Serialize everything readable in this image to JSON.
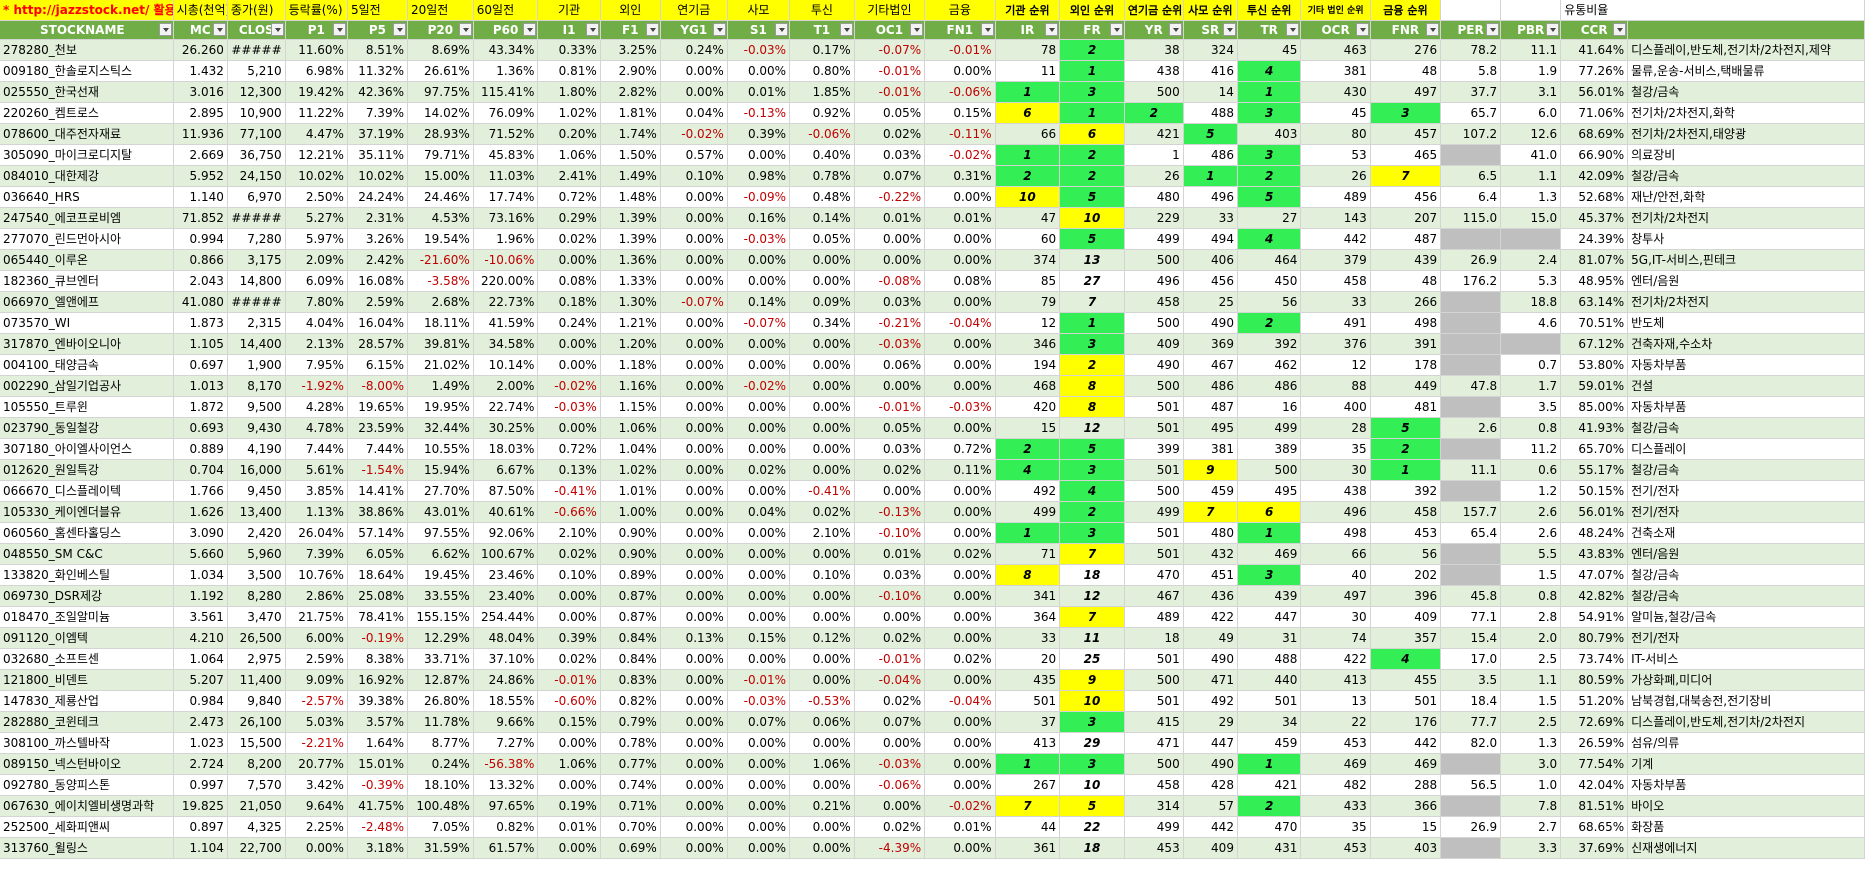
{
  "top": {
    "link": "* http://jazzstock.net/ 활용",
    "cells": [
      "시총(천억)",
      "종가(원)",
      "등락률(%)",
      "5일전",
      "20일전",
      "60일전",
      "기관",
      "외인",
      "연기금",
      "사모",
      "투신",
      "기타법인",
      "금융",
      "기관 순위",
      "외인 순위",
      "연기금 순위",
      "사모 순위",
      "투신 순위",
      "기타 법인 순위",
      "금융 순위",
      "",
      "",
      "유통비율"
    ]
  },
  "headers": [
    "STOCKNAME",
    "MC",
    "CLOS",
    "P1",
    "P5",
    "P20",
    "P60",
    "I1",
    "F1",
    "YG1",
    "S1",
    "T1",
    "OC1",
    "FN1",
    "IR",
    "FR",
    "YR",
    "SR",
    "TR",
    "OCR",
    "FNR",
    "PER",
    "PBR",
    "CCR",
    ""
  ],
  "rows": [
    [
      "278280_천보",
      "26.260",
      "#####",
      "11.60%",
      "8.51%",
      "8.69%",
      "43.34%",
      "0.33%",
      "3.25%",
      "0.24%",
      "-0.03%",
      "0.17%",
      "-0.07%",
      "-0.01%",
      "78",
      "2",
      "38",
      "324",
      "45",
      "463",
      "276",
      "78.2",
      "11.1",
      "41.64%",
      "디스플레이,반도체,전기차/2차전지,제약"
    ],
    [
      "009180_한솔로지스틱스",
      "1.432",
      "5,210",
      "6.98%",
      "11.32%",
      "26.61%",
      "1.36%",
      "0.81%",
      "2.90%",
      "0.00%",
      "0.00%",
      "0.80%",
      "-0.01%",
      "0.00%",
      "11",
      "1",
      "438",
      "416",
      "4",
      "381",
      "48",
      "5.8",
      "1.9",
      "77.26%",
      "물류,운송-서비스,택배물류"
    ],
    [
      "025550_한국선재",
      "3.016",
      "12,300",
      "19.42%",
      "42.36%",
      "97.75%",
      "115.41%",
      "1.80%",
      "2.82%",
      "0.00%",
      "0.01%",
      "1.85%",
      "-0.01%",
      "-0.06%",
      "1",
      "3",
      "500",
      "14",
      "1",
      "430",
      "497",
      "37.7",
      "3.1",
      "56.01%",
      "철강/금속"
    ],
    [
      "220260_켐트로스",
      "2.895",
      "10,900",
      "11.22%",
      "7.39%",
      "14.02%",
      "76.09%",
      "1.02%",
      "1.81%",
      "0.04%",
      "-0.13%",
      "0.92%",
      "0.05%",
      "0.15%",
      "6",
      "1",
      "2",
      "488",
      "3",
      "45",
      "3",
      "65.7",
      "6.0",
      "71.06%",
      "전기차/2차전지,화학"
    ],
    [
      "078600_대주전자재료",
      "11.936",
      "77,100",
      "4.47%",
      "37.19%",
      "28.93%",
      "71.52%",
      "0.20%",
      "1.74%",
      "-0.02%",
      "0.39%",
      "-0.06%",
      "0.02%",
      "-0.11%",
      "66",
      "6",
      "421",
      "5",
      "403",
      "80",
      "457",
      "107.2",
      "12.6",
      "68.69%",
      "전기차/2차전지,태양광"
    ],
    [
      "305090_마이크로디지탈",
      "2.669",
      "36,750",
      "12.21%",
      "35.11%",
      "79.71%",
      "45.83%",
      "1.06%",
      "1.50%",
      "0.57%",
      "0.00%",
      "0.40%",
      "0.03%",
      "-0.02%",
      "1",
      "2",
      "1",
      "486",
      "3",
      "53",
      "465",
      "",
      "41.0",
      "66.90%",
      "의료장비"
    ],
    [
      "084010_대한제강",
      "5.952",
      "24,150",
      "10.02%",
      "10.02%",
      "15.00%",
      "11.03%",
      "2.41%",
      "1.49%",
      "0.10%",
      "0.98%",
      "0.78%",
      "0.07%",
      "0.31%",
      "2",
      "2",
      "26",
      "1",
      "2",
      "26",
      "7",
      "6.5",
      "1.1",
      "42.09%",
      "철강/금속"
    ],
    [
      "036640_HRS",
      "1.140",
      "6,970",
      "2.50%",
      "24.24%",
      "24.46%",
      "17.74%",
      "0.72%",
      "1.48%",
      "0.00%",
      "-0.09%",
      "0.48%",
      "-0.22%",
      "0.00%",
      "10",
      "5",
      "480",
      "496",
      "5",
      "489",
      "456",
      "6.4",
      "1.3",
      "52.68%",
      "재난/안전,화학"
    ],
    [
      "247540_에코프로비엠",
      "71.852",
      "#####",
      "5.27%",
      "2.31%",
      "4.53%",
      "73.16%",
      "0.29%",
      "1.39%",
      "0.00%",
      "0.16%",
      "0.14%",
      "0.01%",
      "0.01%",
      "47",
      "10",
      "229",
      "33",
      "27",
      "143",
      "207",
      "115.0",
      "15.0",
      "45.37%",
      "전기차/2차전지"
    ],
    [
      "277070_린드먼아시아",
      "0.994",
      "7,280",
      "5.97%",
      "3.26%",
      "19.54%",
      "1.96%",
      "0.02%",
      "1.39%",
      "0.00%",
      "-0.03%",
      "0.05%",
      "0.00%",
      "0.00%",
      "60",
      "5",
      "499",
      "494",
      "4",
      "442",
      "487",
      "",
      "",
      "24.39%",
      "창투사"
    ],
    [
      "065440_이루온",
      "0.866",
      "3,175",
      "2.09%",
      "2.42%",
      "-21.60%",
      "-10.06%",
      "0.00%",
      "1.36%",
      "0.00%",
      "0.00%",
      "0.00%",
      "0.00%",
      "0.00%",
      "374",
      "13",
      "500",
      "406",
      "464",
      "379",
      "439",
      "26.9",
      "2.4",
      "81.07%",
      "5G,IT-서비스,핀테크"
    ],
    [
      "182360_큐브엔터",
      "2.043",
      "14,800",
      "6.09%",
      "16.08%",
      "-3.58%",
      "220.00%",
      "0.08%",
      "1.33%",
      "0.00%",
      "0.00%",
      "0.00%",
      "-0.08%",
      "0.08%",
      "85",
      "27",
      "496",
      "456",
      "450",
      "458",
      "48",
      "176.2",
      "5.3",
      "48.95%",
      "엔터/음원"
    ],
    [
      "066970_엘앤에프",
      "41.080",
      "#####",
      "7.80%",
      "2.59%",
      "2.68%",
      "22.73%",
      "0.18%",
      "1.30%",
      "-0.07%",
      "0.14%",
      "0.09%",
      "0.03%",
      "0.00%",
      "79",
      "7",
      "458",
      "25",
      "56",
      "33",
      "266",
      "",
      "18.8",
      "63.14%",
      "전기차/2차전지"
    ],
    [
      "073570_WI",
      "1.873",
      "2,315",
      "4.04%",
      "16.04%",
      "18.11%",
      "41.59%",
      "0.24%",
      "1.21%",
      "0.00%",
      "-0.07%",
      "0.34%",
      "-0.21%",
      "-0.04%",
      "12",
      "1",
      "500",
      "490",
      "2",
      "491",
      "498",
      "",
      "4.6",
      "70.51%",
      "반도체"
    ],
    [
      "317870_엔바이오니아",
      "1.105",
      "14,400",
      "2.13%",
      "28.57%",
      "39.81%",
      "34.58%",
      "0.00%",
      "1.20%",
      "0.00%",
      "0.00%",
      "0.00%",
      "-0.03%",
      "0.00%",
      "346",
      "3",
      "409",
      "369",
      "392",
      "376",
      "391",
      "",
      "",
      "67.12%",
      "건축자재,수소차"
    ],
    [
      "004100_태양금속",
      "0.697",
      "1,900",
      "7.95%",
      "6.15%",
      "21.02%",
      "10.14%",
      "0.00%",
      "1.18%",
      "0.00%",
      "0.00%",
      "0.00%",
      "0.06%",
      "0.00%",
      "194",
      "2",
      "490",
      "467",
      "462",
      "12",
      "178",
      "",
      "0.7",
      "53.80%",
      "자동차부품"
    ],
    [
      "002290_삼일기업공사",
      "1.013",
      "8,170",
      "-1.92%",
      "-8.00%",
      "1.49%",
      "2.00%",
      "-0.02%",
      "1.16%",
      "0.00%",
      "-0.02%",
      "0.00%",
      "0.00%",
      "0.00%",
      "468",
      "8",
      "500",
      "486",
      "486",
      "88",
      "449",
      "47.8",
      "1.7",
      "59.01%",
      "건설"
    ],
    [
      "105550_트루윈",
      "1.872",
      "9,500",
      "4.28%",
      "19.65%",
      "19.95%",
      "22.74%",
      "-0.03%",
      "1.15%",
      "0.00%",
      "0.00%",
      "0.00%",
      "-0.01%",
      "-0.03%",
      "420",
      "8",
      "501",
      "487",
      "16",
      "400",
      "481",
      "",
      "3.5",
      "85.00%",
      "자동차부품"
    ],
    [
      "023790_동일철강",
      "0.693",
      "9,430",
      "4.78%",
      "23.59%",
      "32.44%",
      "30.25%",
      "0.00%",
      "1.06%",
      "0.00%",
      "0.00%",
      "0.00%",
      "0.05%",
      "0.00%",
      "15",
      "12",
      "501",
      "495",
      "499",
      "28",
      "5",
      "2.6",
      "0.8",
      "41.93%",
      "철강/금속"
    ],
    [
      "307180_아이엘사이언스",
      "0.889",
      "4,190",
      "7.44%",
      "7.44%",
      "10.55%",
      "18.03%",
      "0.72%",
      "1.04%",
      "0.00%",
      "0.00%",
      "0.00%",
      "0.03%",
      "0.72%",
      "2",
      "5",
      "399",
      "381",
      "389",
      "35",
      "2",
      "",
      "11.2",
      "65.70%",
      "디스플레이"
    ],
    [
      "012620_원일특강",
      "0.704",
      "16,000",
      "5.61%",
      "-1.54%",
      "15.94%",
      "6.67%",
      "0.13%",
      "1.02%",
      "0.00%",
      "0.02%",
      "0.00%",
      "0.02%",
      "0.11%",
      "4",
      "3",
      "501",
      "9",
      "500",
      "30",
      "1",
      "11.1",
      "0.6",
      "55.17%",
      "철강/금속"
    ],
    [
      "066670_디스플레이텍",
      "1.766",
      "9,450",
      "3.85%",
      "14.41%",
      "27.70%",
      "87.50%",
      "-0.41%",
      "1.01%",
      "0.00%",
      "0.00%",
      "-0.41%",
      "0.00%",
      "0.00%",
      "492",
      "4",
      "500",
      "459",
      "495",
      "438",
      "392",
      "",
      "1.2",
      "50.15%",
      "전기/전자"
    ],
    [
      "105330_케이엔더블유",
      "1.626",
      "13,400",
      "1.13%",
      "38.86%",
      "43.01%",
      "40.61%",
      "-0.66%",
      "1.00%",
      "0.00%",
      "0.04%",
      "0.02%",
      "-0.13%",
      "0.00%",
      "499",
      "2",
      "499",
      "7",
      "6",
      "496",
      "458",
      "157.7",
      "2.6",
      "56.01%",
      "전기/전자"
    ],
    [
      "060560_홈센타홀딩스",
      "3.090",
      "2,420",
      "26.04%",
      "57.14%",
      "97.55%",
      "92.06%",
      "2.10%",
      "0.90%",
      "0.00%",
      "0.00%",
      "2.10%",
      "-0.10%",
      "0.00%",
      "1",
      "3",
      "501",
      "480",
      "1",
      "498",
      "453",
      "65.4",
      "2.6",
      "48.24%",
      "건축소재"
    ],
    [
      "048550_SM C&C",
      "5.660",
      "5,960",
      "7.39%",
      "6.05%",
      "6.62%",
      "100.67%",
      "0.02%",
      "0.90%",
      "0.00%",
      "0.00%",
      "0.00%",
      "0.01%",
      "0.02%",
      "71",
      "7",
      "501",
      "432",
      "469",
      "66",
      "56",
      "",
      "5.5",
      "43.83%",
      "엔터/음원"
    ],
    [
      "133820_화인베스틸",
      "1.034",
      "3,500",
      "10.76%",
      "18.64%",
      "19.45%",
      "23.46%",
      "0.10%",
      "0.89%",
      "0.00%",
      "0.00%",
      "0.10%",
      "0.03%",
      "0.00%",
      "8",
      "18",
      "470",
      "451",
      "3",
      "40",
      "202",
      "",
      "1.5",
      "47.07%",
      "철강/금속"
    ],
    [
      "069730_DSR제강",
      "1.192",
      "8,280",
      "2.86%",
      "25.08%",
      "33.55%",
      "23.40%",
      "0.00%",
      "0.87%",
      "0.00%",
      "0.00%",
      "0.00%",
      "-0.10%",
      "0.00%",
      "341",
      "12",
      "467",
      "436",
      "439",
      "497",
      "396",
      "45.8",
      "0.8",
      "42.82%",
      "철강/금속"
    ],
    [
      "018470_조일알미늄",
      "3.561",
      "3,470",
      "21.75%",
      "78.41%",
      "155.15%",
      "254.44%",
      "0.00%",
      "0.87%",
      "0.00%",
      "0.00%",
      "0.00%",
      "0.00%",
      "0.00%",
      "364",
      "7",
      "489",
      "422",
      "447",
      "30",
      "409",
      "77.1",
      "2.8",
      "54.91%",
      "알미늄,철강/금속"
    ],
    [
      "091120_이엠텍",
      "4.210",
      "26,500",
      "6.00%",
      "-0.19%",
      "12.29%",
      "48.04%",
      "0.39%",
      "0.84%",
      "0.13%",
      "0.15%",
      "0.12%",
      "0.02%",
      "0.00%",
      "33",
      "11",
      "18",
      "49",
      "31",
      "74",
      "357",
      "15.4",
      "2.0",
      "80.79%",
      "전기/전자"
    ],
    [
      "032680_소프트센",
      "1.064",
      "2,975",
      "2.59%",
      "8.38%",
      "33.71%",
      "37.10%",
      "0.02%",
      "0.84%",
      "0.00%",
      "0.00%",
      "0.00%",
      "-0.01%",
      "0.02%",
      "20",
      "25",
      "501",
      "490",
      "488",
      "422",
      "4",
      "17.0",
      "2.5",
      "73.74%",
      "IT-서비스"
    ],
    [
      "121800_비덴트",
      "5.207",
      "11,400",
      "9.09%",
      "16.92%",
      "12.87%",
      "24.86%",
      "-0.01%",
      "0.83%",
      "0.00%",
      "-0.01%",
      "0.00%",
      "-0.04%",
      "0.00%",
      "435",
      "9",
      "500",
      "471",
      "440",
      "413",
      "455",
      "3.5",
      "1.1",
      "80.59%",
      "가상화폐,미디어"
    ],
    [
      "147830_제룡산업",
      "0.984",
      "9,840",
      "-2.57%",
      "39.38%",
      "26.80%",
      "18.55%",
      "-0.60%",
      "0.82%",
      "0.00%",
      "-0.03%",
      "-0.53%",
      "0.02%",
      "-0.04%",
      "501",
      "10",
      "501",
      "492",
      "501",
      "13",
      "501",
      "18.4",
      "1.5",
      "51.20%",
      "남북경협,대북송전,전기장비"
    ],
    [
      "282880_코윈테크",
      "2.473",
      "26,100",
      "5.03%",
      "3.57%",
      "11.78%",
      "9.66%",
      "0.15%",
      "0.79%",
      "0.00%",
      "0.07%",
      "0.06%",
      "0.07%",
      "0.00%",
      "37",
      "3",
      "415",
      "29",
      "34",
      "22",
      "176",
      "77.7",
      "2.5",
      "72.69%",
      "디스플레이,반도체,전기차/2차전지"
    ],
    [
      "308100_까스텔바작",
      "1.023",
      "15,500",
      "-2.21%",
      "1.64%",
      "8.77%",
      "7.27%",
      "0.00%",
      "0.78%",
      "0.00%",
      "0.00%",
      "0.00%",
      "0.00%",
      "0.00%",
      "413",
      "29",
      "471",
      "447",
      "459",
      "453",
      "442",
      "82.0",
      "1.3",
      "26.59%",
      "섬유/의류"
    ],
    [
      "089150_넥스턴바이오",
      "2.724",
      "8,200",
      "20.77%",
      "15.01%",
      "0.24%",
      "-56.38%",
      "1.06%",
      "0.77%",
      "0.00%",
      "0.00%",
      "1.06%",
      "-0.03%",
      "0.00%",
      "1",
      "3",
      "500",
      "490",
      "1",
      "469",
      "469",
      "",
      "3.0",
      "77.54%",
      "기계"
    ],
    [
      "092780_동양피스톤",
      "0.997",
      "7,570",
      "3.42%",
      "-0.39%",
      "18.10%",
      "13.32%",
      "0.00%",
      "0.74%",
      "0.00%",
      "0.00%",
      "0.00%",
      "-0.06%",
      "0.00%",
      "267",
      "10",
      "458",
      "428",
      "421",
      "482",
      "288",
      "56.5",
      "1.0",
      "42.04%",
      "자동차부품"
    ],
    [
      "067630_에이치엘비생명과학",
      "19.825",
      "21,050",
      "9.64%",
      "41.75%",
      "100.48%",
      "97.65%",
      "0.19%",
      "0.71%",
      "0.00%",
      "0.00%",
      "0.21%",
      "0.00%",
      "-0.02%",
      "7",
      "5",
      "314",
      "57",
      "2",
      "433",
      "366",
      "",
      "7.8",
      "81.51%",
      "바이오"
    ],
    [
      "252500_세화피앤씨",
      "0.897",
      "4,325",
      "2.25%",
      "-2.48%",
      "7.05%",
      "0.82%",
      "0.01%",
      "0.70%",
      "0.00%",
      "0.00%",
      "0.00%",
      "0.02%",
      "0.01%",
      "44",
      "22",
      "499",
      "442",
      "470",
      "35",
      "15",
      "26.9",
      "2.7",
      "68.65%",
      "화장품"
    ],
    [
      "313760_윌링스",
      "1.104",
      "22,700",
      "0.00%",
      "3.18%",
      "31.59%",
      "61.57%",
      "0.00%",
      "0.69%",
      "0.00%",
      "0.00%",
      "0.00%",
      "-4.39%",
      "0.00%",
      "361",
      "18",
      "453",
      "409",
      "431",
      "453",
      "403",
      "",
      "3.3",
      "37.69%",
      "신재생에너지"
    ]
  ],
  "highlights": {
    "yellow": [
      [
        3,
        14
      ],
      [
        4,
        15
      ],
      [
        6,
        20
      ],
      [
        7,
        14
      ],
      [
        8,
        15
      ],
      [
        15,
        15
      ],
      [
        16,
        15
      ],
      [
        17,
        15
      ],
      [
        20,
        17
      ],
      [
        22,
        17
      ],
      [
        22,
        18
      ],
      [
        24,
        15
      ],
      [
        25,
        14
      ],
      [
        27,
        15
      ],
      [
        30,
        15
      ],
      [
        31,
        15
      ],
      [
        36,
        14
      ],
      [
        36,
        15
      ]
    ],
    "green": [
      [
        0,
        15
      ],
      [
        1,
        15
      ],
      [
        1,
        18
      ],
      [
        2,
        14
      ],
      [
        2,
        15
      ],
      [
        2,
        18
      ],
      [
        3,
        15
      ],
      [
        3,
        16
      ],
      [
        3,
        18
      ],
      [
        3,
        20
      ],
      [
        4,
        17
      ],
      [
        5,
        14
      ],
      [
        5,
        15
      ],
      [
        5,
        18
      ],
      [
        6,
        14
      ],
      [
        6,
        15
      ],
      [
        6,
        17
      ],
      [
        6,
        18
      ],
      [
        7,
        15
      ],
      [
        7,
        18
      ],
      [
        9,
        15
      ],
      [
        9,
        18
      ],
      [
        13,
        15
      ],
      [
        13,
        18
      ],
      [
        14,
        15
      ],
      [
        18,
        20
      ],
      [
        19,
        14
      ],
      [
        19,
        15
      ],
      [
        19,
        20
      ],
      [
        20,
        14
      ],
      [
        20,
        15
      ],
      [
        20,
        20
      ],
      [
        21,
        15
      ],
      [
        22,
        15
      ],
      [
        23,
        14
      ],
      [
        23,
        15
      ],
      [
        23,
        18
      ],
      [
        25,
        18
      ],
      [
        29,
        20
      ],
      [
        32,
        15
      ],
      [
        34,
        14
      ],
      [
        34,
        15
      ],
      [
        34,
        18
      ],
      [
        36,
        18
      ]
    ],
    "gray": [
      [
        5,
        21
      ],
      [
        9,
        21
      ],
      [
        9,
        22
      ],
      [
        12,
        21
      ],
      [
        13,
        21
      ],
      [
        14,
        21
      ],
      [
        14,
        22
      ],
      [
        15,
        21
      ],
      [
        17,
        21
      ],
      [
        19,
        21
      ],
      [
        21,
        21
      ],
      [
        24,
        21
      ],
      [
        25,
        21
      ],
      [
        34,
        21
      ],
      [
        36,
        21
      ],
      [
        38,
        21
      ]
    ]
  },
  "colors": {
    "header_green": "#70ad47",
    "band_green": "#e2efda",
    "yellow": "#ffff00",
    "bright_green": "#33ee55",
    "gray": "#bfbfbf",
    "negative": "#c00000"
  }
}
